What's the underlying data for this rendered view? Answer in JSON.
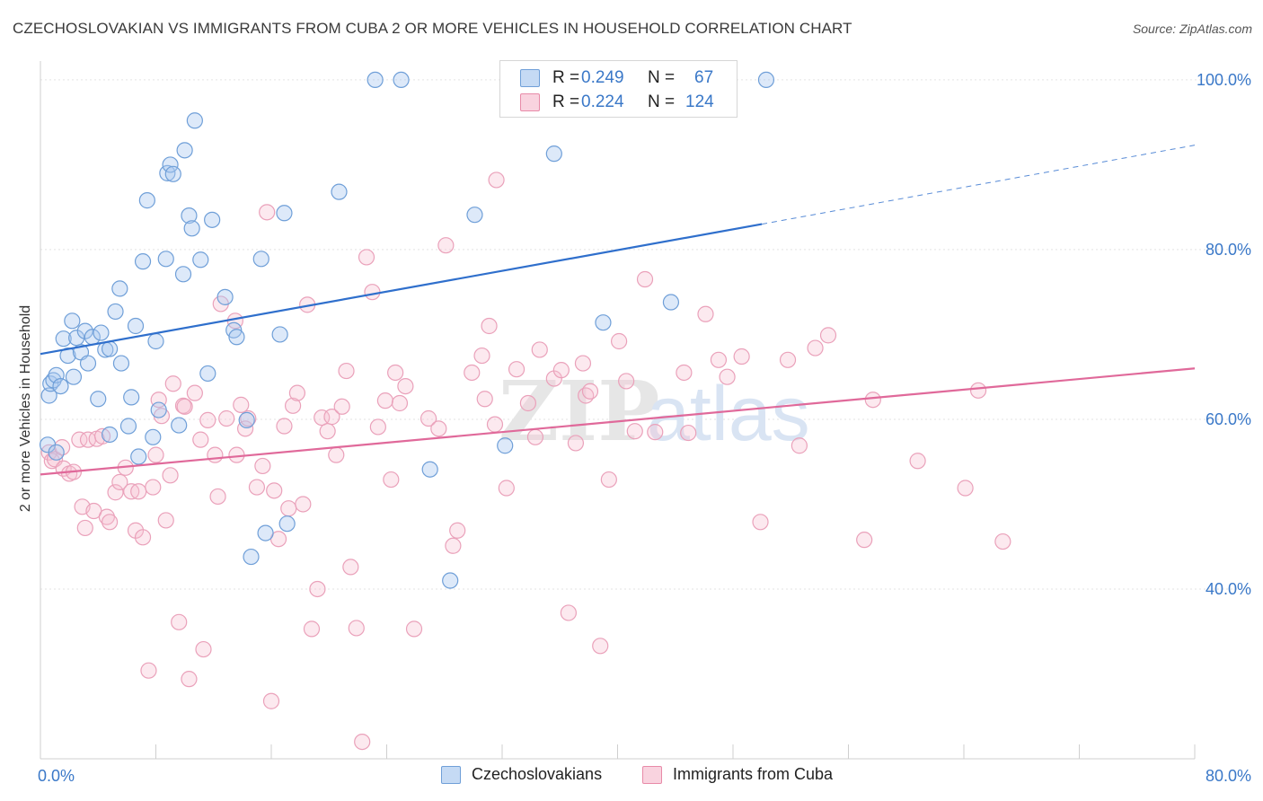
{
  "title": "CZECHOSLOVAKIAN VS IMMIGRANTS FROM CUBA 2 OR MORE VEHICLES IN HOUSEHOLD CORRELATION CHART",
  "source": "Source: ZipAtlas.com",
  "watermark": {
    "part1": "ZIP",
    "part2": "atlas"
  },
  "legend": {
    "rows": [
      {
        "r_label": "R =",
        "r_value": "0.249",
        "n_label": "N =",
        "n_value": "67",
        "color": "#a9c8ef",
        "border": "#6f9fd8"
      },
      {
        "r_label": "R =",
        "r_value": "0.224",
        "n_label": "N =",
        "n_value": "124",
        "color": "#f7bfd0",
        "border": "#e88aa8"
      }
    ]
  },
  "bottom_legend": [
    {
      "label": "Czechoslovakians",
      "color": "#a9c8ef",
      "border": "#6f9fd8"
    },
    {
      "label": "Immigrants from Cuba",
      "color": "#f7bfd0",
      "border": "#e88aa8"
    }
  ],
  "colors": {
    "blue_line": "#2f6fcc",
    "pink_line": "#e0699a",
    "tick_label": "#3a78c8",
    "grid": "#e3e3e3"
  },
  "chart_data": {
    "type": "scatter",
    "title": "CZECHOSLOVAKIAN VS IMMIGRANTS FROM CUBA 2 OR MORE VEHICLES IN HOUSEHOLD CORRELATION CHART",
    "xlabel": "",
    "ylabel": "2 or more Vehicles in Household",
    "xlim": [
      0,
      80
    ],
    "ylim": [
      20,
      102
    ],
    "x_tick_labels": [
      {
        "value": 0,
        "label": "0.0%"
      },
      {
        "value": 80,
        "label": "80.0%"
      }
    ],
    "y_tick_labels": [
      {
        "value": 40,
        "label": "40.0%"
      },
      {
        "value": 60,
        "label": "60.0%"
      },
      {
        "value": 80,
        "label": "80.0%"
      },
      {
        "value": 100,
        "label": "100.0%"
      }
    ],
    "grid": true,
    "legend_position": "top-center",
    "series": [
      {
        "name": "Czechoslovakians",
        "R": 0.249,
        "N": 67,
        "trend": {
          "x0": 0,
          "y0": 67.7,
          "x1": 50,
          "y1": 83,
          "dashed_to_x": 80,
          "dashed_to_y": 92.3
        },
        "points": [
          [
            0.5,
            57
          ],
          [
            0.6,
            62.8
          ],
          [
            0.7,
            64.2
          ],
          [
            0.9,
            64.6
          ],
          [
            1.1,
            65.2
          ],
          [
            1.4,
            63.9
          ],
          [
            1.6,
            69.5
          ],
          [
            1.9,
            67.5
          ],
          [
            2.2,
            71.6
          ],
          [
            2.3,
            65
          ],
          [
            2.5,
            69.6
          ],
          [
            2.8,
            67.9
          ],
          [
            3.1,
            70.4
          ],
          [
            3.3,
            66.6
          ],
          [
            3.6,
            69.7
          ],
          [
            4,
            62.4
          ],
          [
            4.2,
            70.2
          ],
          [
            4.5,
            68.2
          ],
          [
            4.8,
            68.3
          ],
          [
            5.2,
            72.7
          ],
          [
            5.5,
            75.4
          ],
          [
            5.6,
            66.6
          ],
          [
            6.1,
            59.2
          ],
          [
            6.3,
            62.6
          ],
          [
            6.6,
            71
          ],
          [
            6.8,
            55.6
          ],
          [
            7.1,
            78.6
          ],
          [
            7.4,
            85.8
          ],
          [
            7.8,
            57.9
          ],
          [
            8,
            69.2
          ],
          [
            8.2,
            61.1
          ],
          [
            8.7,
            78.9
          ],
          [
            8.8,
            89
          ],
          [
            9,
            90
          ],
          [
            9.2,
            88.9
          ],
          [
            9.6,
            59.3
          ],
          [
            9.9,
            77.1
          ],
          [
            10,
            91.7
          ],
          [
            10.3,
            84
          ],
          [
            10.5,
            82.5
          ],
          [
            10.7,
            95.2
          ],
          [
            11.1,
            78.8
          ],
          [
            11.6,
            65.4
          ],
          [
            11.9,
            83.5
          ],
          [
            12.8,
            74.4
          ],
          [
            13.4,
            70.5
          ],
          [
            13.6,
            69.7
          ],
          [
            14.3,
            59.9
          ],
          [
            14.6,
            43.8
          ],
          [
            15.3,
            78.9
          ],
          [
            15.6,
            46.6
          ],
          [
            16.6,
            70
          ],
          [
            16.9,
            84.3
          ],
          [
            17.1,
            47.7
          ],
          [
            20.7,
            86.8
          ],
          [
            23.2,
            100
          ],
          [
            25,
            100
          ],
          [
            27,
            54.1
          ],
          [
            28.4,
            41
          ],
          [
            30.1,
            84.1
          ],
          [
            32.2,
            56.9
          ],
          [
            35.6,
            91.3
          ],
          [
            39,
            71.4
          ],
          [
            43.7,
            73.8
          ],
          [
            50.3,
            100
          ],
          [
            4.8,
            58.2
          ],
          [
            1.1,
            56.1
          ]
        ]
      },
      {
        "name": "Immigrants from Cuba",
        "R": 0.224,
        "N": 124,
        "trend": {
          "x0": 0,
          "y0": 53.5,
          "x1": 80,
          "y1": 66
        },
        "points": [
          [
            0.6,
            56.1
          ],
          [
            0.8,
            55.1
          ],
          [
            1,
            55.3
          ],
          [
            1.5,
            56.7
          ],
          [
            1.6,
            54.2
          ],
          [
            2,
            53.6
          ],
          [
            2.3,
            53.8
          ],
          [
            2.7,
            57.6
          ],
          [
            2.9,
            49.7
          ],
          [
            3.1,
            47.2
          ],
          [
            3.3,
            57.6
          ],
          [
            3.7,
            49.2
          ],
          [
            3.9,
            57.7
          ],
          [
            4.3,
            58
          ],
          [
            4.6,
            48.5
          ],
          [
            4.8,
            47.9
          ],
          [
            5.2,
            51.4
          ],
          [
            5.5,
            52.6
          ],
          [
            5.9,
            54.3
          ],
          [
            6.3,
            51.5
          ],
          [
            6.6,
            46.9
          ],
          [
            6.8,
            51.5
          ],
          [
            7.1,
            46.1
          ],
          [
            7.5,
            30.4
          ],
          [
            8,
            55.8
          ],
          [
            8.2,
            62.3
          ],
          [
            8.4,
            60.4
          ],
          [
            8.7,
            48.1
          ],
          [
            9,
            53.4
          ],
          [
            9.2,
            64.2
          ],
          [
            9.6,
            36.1
          ],
          [
            9.9,
            61.6
          ],
          [
            10.3,
            29.4
          ],
          [
            10.7,
            63.1
          ],
          [
            11.1,
            57.6
          ],
          [
            11.3,
            32.9
          ],
          [
            11.6,
            59.9
          ],
          [
            12.1,
            55.8
          ],
          [
            12.3,
            50.9
          ],
          [
            12.5,
            73.6
          ],
          [
            12.9,
            60.1
          ],
          [
            13.5,
            71.6
          ],
          [
            13.6,
            55.8
          ],
          [
            13.9,
            61.7
          ],
          [
            14.2,
            58.9
          ],
          [
            14.4,
            60.1
          ],
          [
            15,
            52
          ],
          [
            15.4,
            54.5
          ],
          [
            15.7,
            84.4
          ],
          [
            16,
            26.8
          ],
          [
            16.2,
            51.6
          ],
          [
            16.5,
            45.9
          ],
          [
            16.9,
            59.2
          ],
          [
            17.2,
            49.5
          ],
          [
            17.5,
            61.6
          ],
          [
            17.8,
            63.1
          ],
          [
            18.2,
            50
          ],
          [
            18.5,
            73.5
          ],
          [
            18.8,
            35.3
          ],
          [
            19.2,
            40
          ],
          [
            19.5,
            60.2
          ],
          [
            19.9,
            58.6
          ],
          [
            20.2,
            60.3
          ],
          [
            20.5,
            55.8
          ],
          [
            20.9,
            61.5
          ],
          [
            21.2,
            65.7
          ],
          [
            21.5,
            42.6
          ],
          [
            21.9,
            35.4
          ],
          [
            22.3,
            22
          ],
          [
            22.6,
            79.1
          ],
          [
            23,
            75
          ],
          [
            23.4,
            59.1
          ],
          [
            23.9,
            62.2
          ],
          [
            24.3,
            52.9
          ],
          [
            24.6,
            65.5
          ],
          [
            24.9,
            61.9
          ],
          [
            25.3,
            63.9
          ],
          [
            25.9,
            35.3
          ],
          [
            26.9,
            60.1
          ],
          [
            27.6,
            58.9
          ],
          [
            28.1,
            80.5
          ],
          [
            28.6,
            45.1
          ],
          [
            28.9,
            46.9
          ],
          [
            29.9,
            65.5
          ],
          [
            30.6,
            67.5
          ],
          [
            30.8,
            62.4
          ],
          [
            31.1,
            71
          ],
          [
            31.5,
            59.4
          ],
          [
            32.3,
            51.9
          ],
          [
            33,
            65.9
          ],
          [
            33.8,
            61.9
          ],
          [
            34.3,
            57.9
          ],
          [
            34.6,
            68.2
          ],
          [
            35.6,
            64.8
          ],
          [
            36.1,
            65.8
          ],
          [
            36.6,
            37.2
          ],
          [
            37.1,
            57.2
          ],
          [
            37.6,
            66.6
          ],
          [
            37.8,
            62.8
          ],
          [
            38.1,
            63.3
          ],
          [
            38.8,
            33.3
          ],
          [
            39.4,
            52.9
          ],
          [
            40.1,
            69.2
          ],
          [
            40.6,
            64.5
          ],
          [
            41.2,
            58.6
          ],
          [
            41.9,
            76.5
          ],
          [
            42.6,
            58.5
          ],
          [
            44.6,
            65.5
          ],
          [
            44.9,
            58.4
          ],
          [
            46.1,
            72.4
          ],
          [
            47,
            67
          ],
          [
            47.6,
            65
          ],
          [
            48.6,
            67.4
          ],
          [
            49.9,
            47.9
          ],
          [
            51.8,
            67
          ],
          [
            52.6,
            56.9
          ],
          [
            53.7,
            68.4
          ],
          [
            54.6,
            69.9
          ],
          [
            57.1,
            45.8
          ],
          [
            57.7,
            62.3
          ],
          [
            60.8,
            55.1
          ],
          [
            64.1,
            51.9
          ],
          [
            65,
            63.4
          ],
          [
            66.7,
            45.6
          ],
          [
            31.6,
            88.2
          ],
          [
            10,
            61.5
          ],
          [
            7.8,
            52
          ]
        ]
      }
    ]
  }
}
